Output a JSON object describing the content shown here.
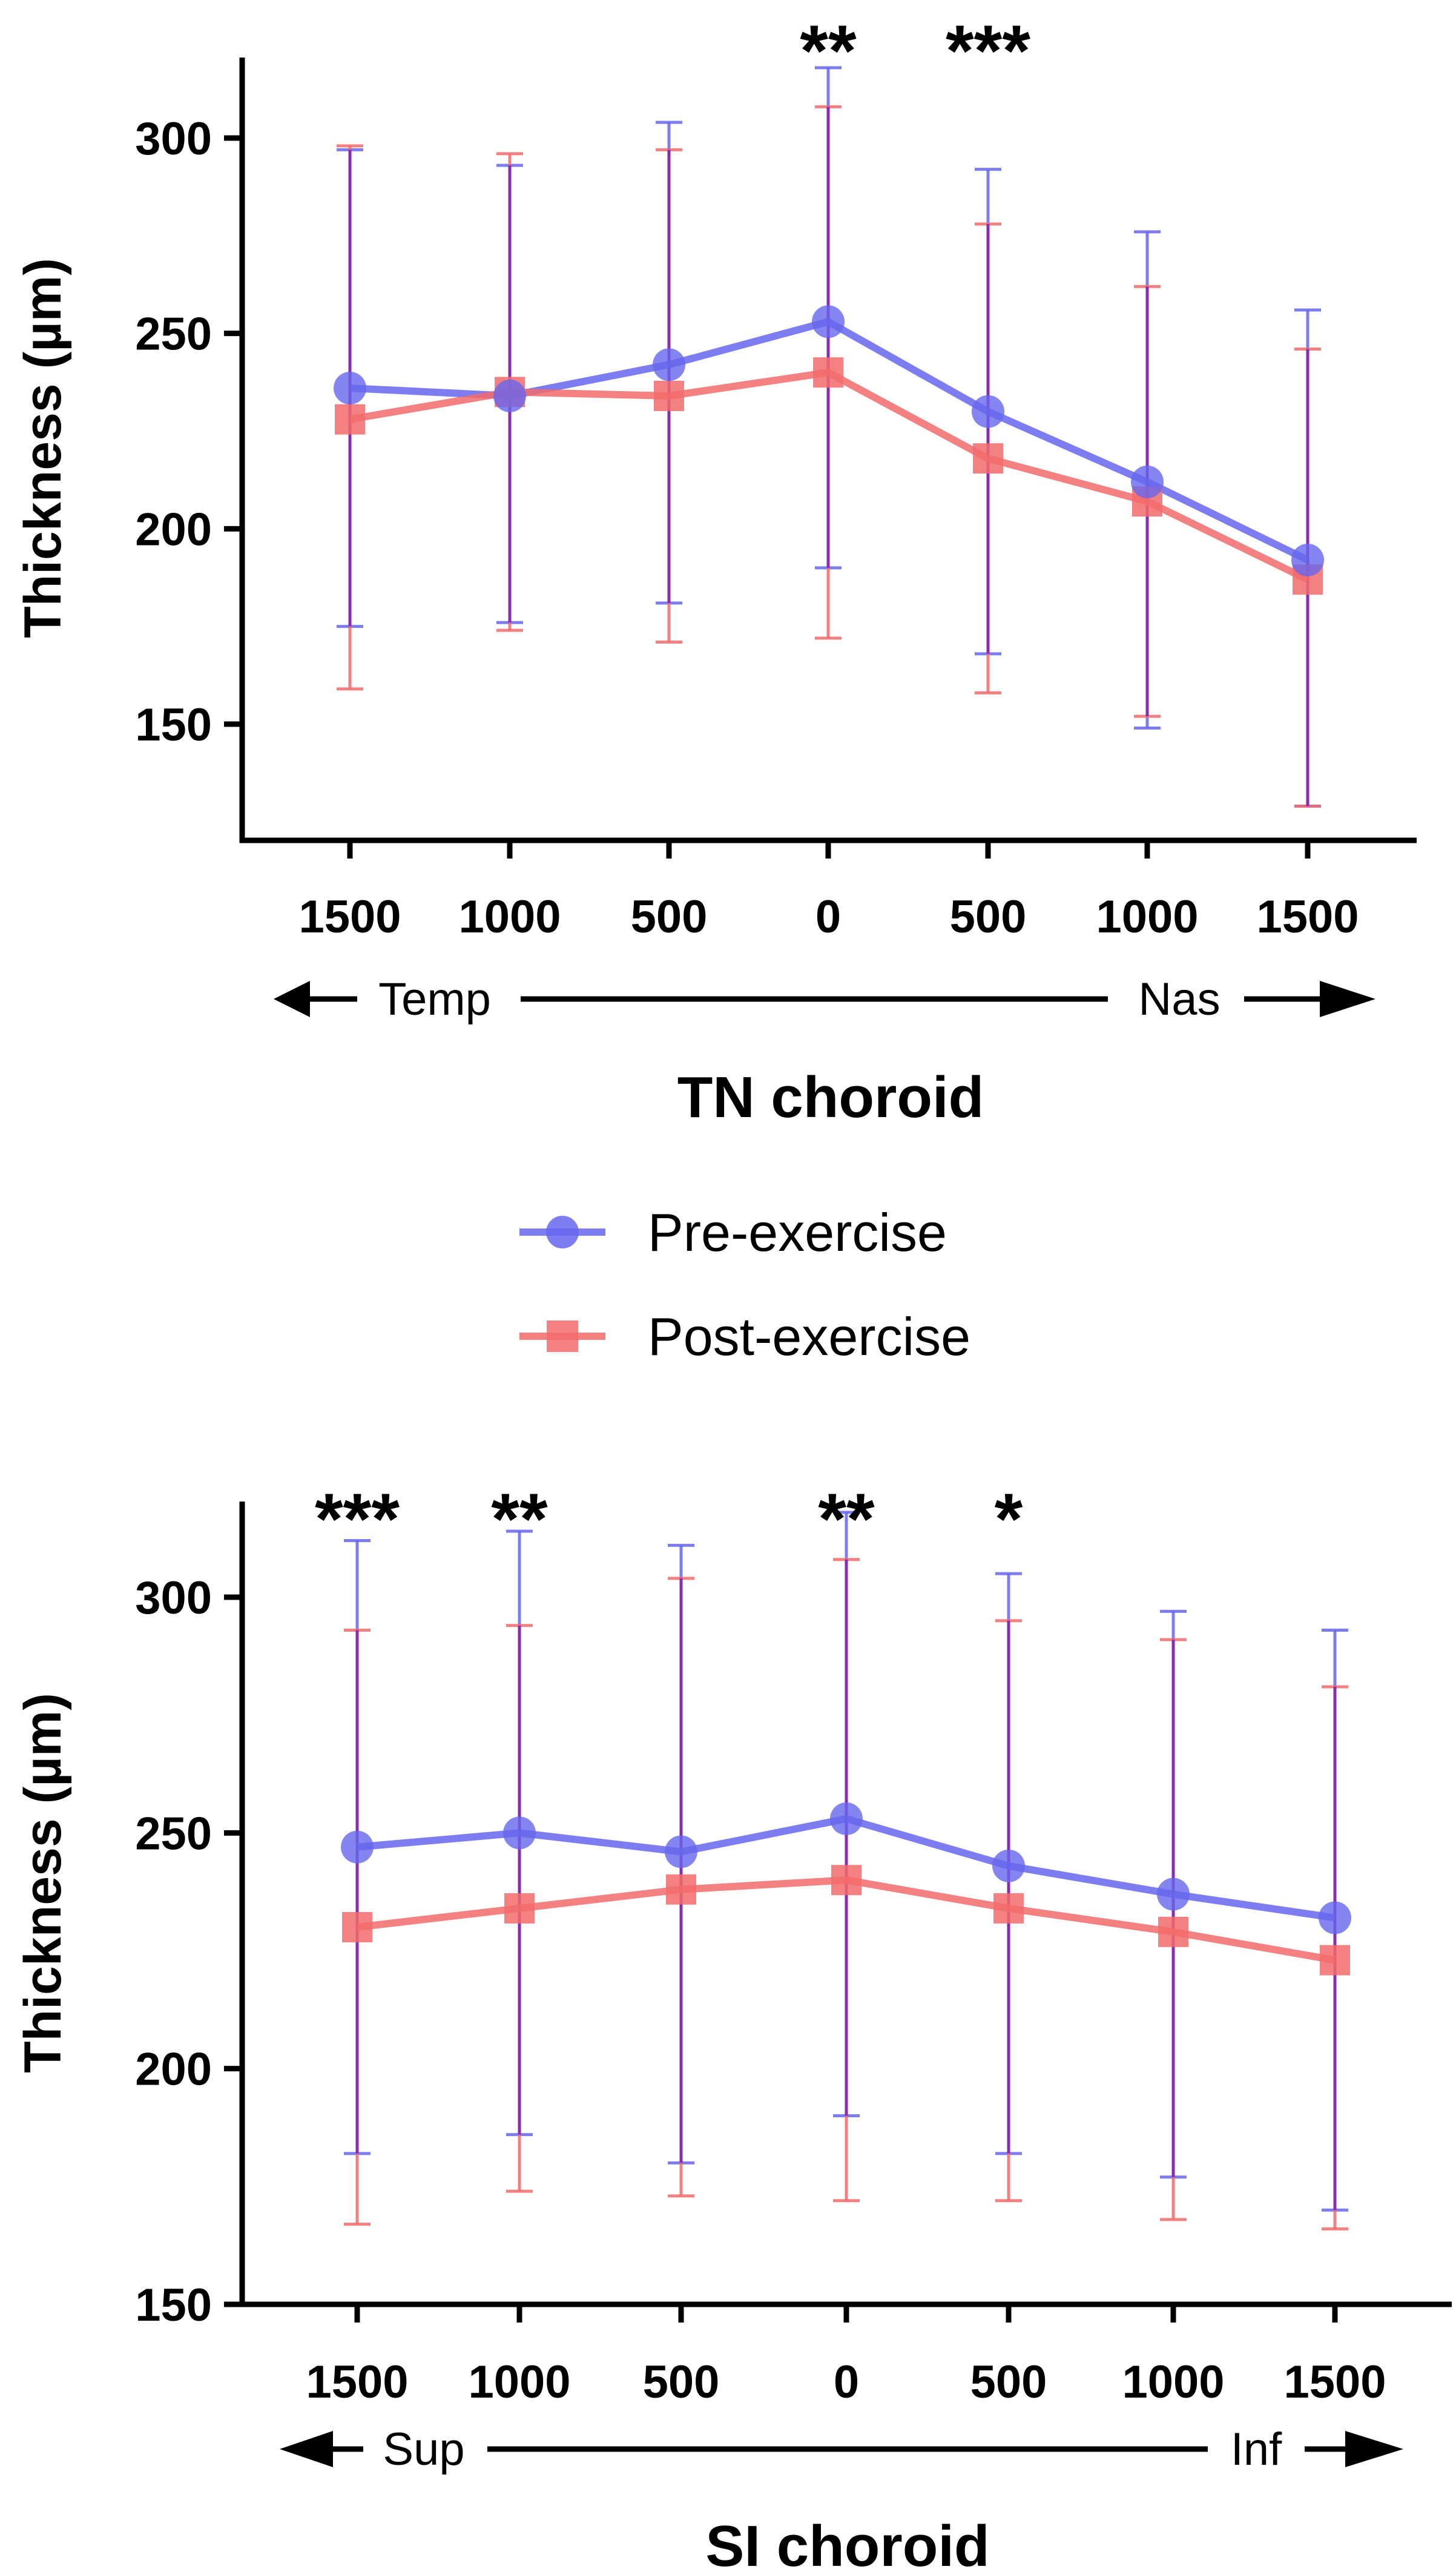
{
  "legend": {
    "pre_label": "Pre-exercise",
    "post_label": "Post-exercise",
    "pre_color": "#6666ee",
    "post_color": "#f26b6b",
    "overlap_color": "#8a2cb0"
  },
  "chart_data": [
    {
      "type": "line",
      "title": "TN choroid",
      "ylabel": "Thickness (µm)",
      "ylim": [
        120,
        320
      ],
      "yticks": [
        150,
        200,
        250,
        300
      ],
      "categories": [
        "1500",
        "1000",
        "500",
        "0",
        "500",
        "1000",
        "1500"
      ],
      "direction_left": "Temp",
      "direction_right": "Nas",
      "series": [
        {
          "name": "Pre-exercise",
          "values": [
            236,
            234,
            242,
            253,
            230,
            212,
            192
          ],
          "sd_upper": [
            297,
            293,
            304,
            318,
            292,
            276,
            256
          ],
          "sd_lower": [
            175,
            176,
            181,
            190,
            168,
            149,
            129
          ]
        },
        {
          "name": "Post-exercise",
          "values": [
            228,
            235,
            234,
            240,
            218,
            207,
            187
          ],
          "sd_upper": [
            298,
            296,
            297,
            308,
            278,
            262,
            246
          ],
          "sd_lower": [
            159,
            174,
            171,
            172,
            158,
            152,
            129
          ]
        }
      ],
      "significance": [
        "",
        "",
        "",
        "**",
        "***",
        "",
        ""
      ]
    },
    {
      "type": "line",
      "title": "SI choroid",
      "ylabel": "Thickness (µm)",
      "ylim": [
        150,
        320
      ],
      "yticks": [
        150,
        200,
        250,
        300
      ],
      "categories": [
        "1500",
        "1000",
        "500",
        "0",
        "500",
        "1000",
        "1500"
      ],
      "direction_left": "Sup",
      "direction_right": "Inf",
      "series": [
        {
          "name": "Pre-exercise",
          "values": [
            247,
            250,
            246,
            253,
            243,
            237,
            232
          ],
          "sd_upper": [
            312,
            314,
            311,
            318,
            305,
            297,
            293
          ],
          "sd_lower": [
            182,
            186,
            180,
            190,
            182,
            177,
            170
          ]
        },
        {
          "name": "Post-exercise",
          "values": [
            230,
            234,
            238,
            240,
            234,
            229,
            223
          ],
          "sd_upper": [
            293,
            294,
            304,
            308,
            295,
            291,
            281
          ],
          "sd_lower": [
            167,
            174,
            173,
            172,
            172,
            168,
            166
          ]
        }
      ],
      "significance": [
        "***",
        "**",
        "",
        "**",
        "*",
        "",
        ""
      ]
    }
  ]
}
